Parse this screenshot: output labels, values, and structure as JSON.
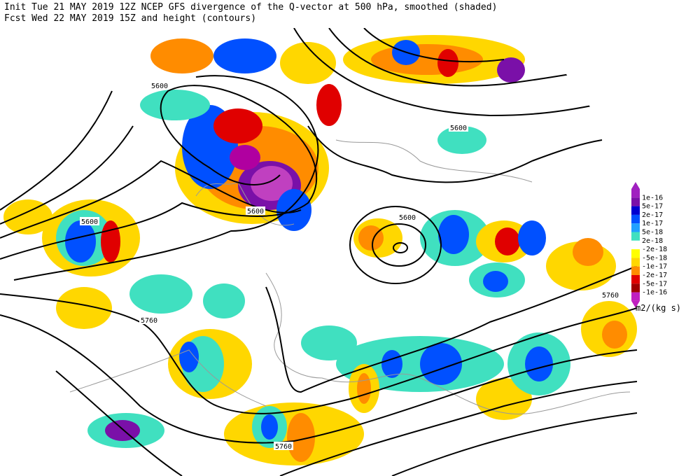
{
  "header": {
    "line1": "Init  Tue 21 MAY 2019 12Z  NCEP GFS divergence of the Q-vector at 500 hPa, smoothed (shaded)",
    "line2": "Fcst Wed 22 MAY 2019 15Z  and height (contours)"
  },
  "contour_labels": [
    "5600",
    "5600",
    "5600",
    "5600",
    "5600",
    "5760",
    "5760",
    "5760"
  ],
  "colorbar": {
    "labels": [
      "1e-16",
      "5e-17",
      "2e-17",
      "1e-17",
      "5e-18",
      "2e-18",
      "-2e-18",
      "-5e-18",
      "-1e-17",
      "-2e-17",
      "-5e-17",
      "-1e-16"
    ],
    "units": "m2/(kg s)"
  }
}
